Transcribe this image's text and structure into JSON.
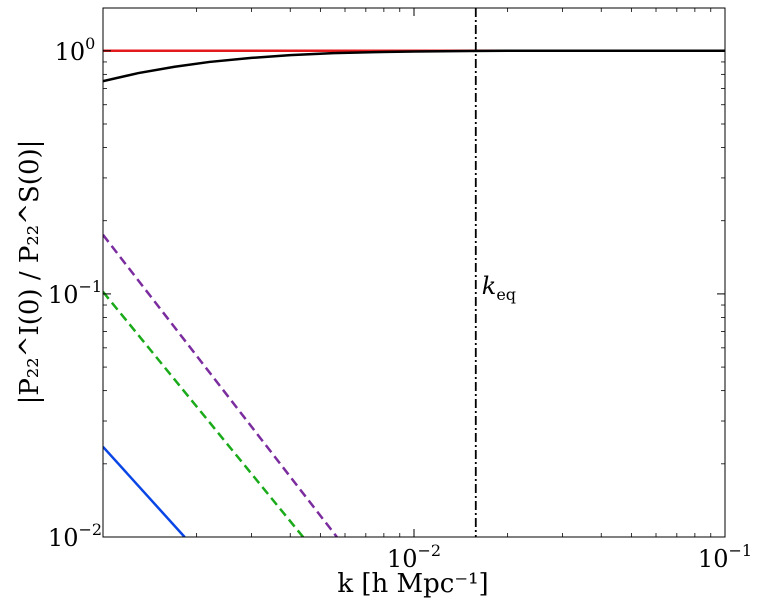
{
  "chart_data": {
    "type": "line",
    "title": "",
    "xlabel": "k [h Mpc⁻¹]",
    "ylabel": "|P₂₂^I(0) / P₂₂^S(0)|",
    "xscale": "log",
    "yscale": "log",
    "xlim": [
      0.001,
      0.1
    ],
    "ylim": [
      0.01,
      1.5
    ],
    "grid": false,
    "x_ticks": [
      {
        "base": "10",
        "exp": "−2",
        "value": 0.01
      },
      {
        "base": "10",
        "exp": "−1",
        "value": 0.1
      }
    ],
    "y_ticks": [
      {
        "base": "10",
        "exp": "0",
        "value": 1
      },
      {
        "base": "10",
        "exp": "−1",
        "value": 0.1
      },
      {
        "base": "10",
        "exp": "−2",
        "value": 0.01
      }
    ],
    "series": [
      {
        "color": "#e41a1c",
        "dash": "solid",
        "x": [
          0.001,
          0.1
        ],
        "y": [
          1.0,
          1.0
        ]
      },
      {
        "color": "#000000",
        "dash": "solid",
        "x": [
          0.001,
          0.0013,
          0.0017,
          0.0022,
          0.003,
          0.004,
          0.0055,
          0.0075,
          0.01,
          0.015,
          0.02,
          0.04,
          0.1
        ],
        "y": [
          0.75,
          0.81,
          0.86,
          0.9,
          0.935,
          0.96,
          0.978,
          0.988,
          0.994,
          0.998,
          1.0,
          1.0,
          1.0
        ]
      },
      {
        "color": "#7b2c9e",
        "dash": "dashed",
        "x": [
          0.001,
          0.00565
        ],
        "y": [
          0.175,
          0.01
        ]
      },
      {
        "color": "#1aaa1a",
        "dash": "dashed",
        "x": [
          0.001,
          0.0044
        ],
        "y": [
          0.102,
          0.01
        ]
      },
      {
        "color": "#0a46e6",
        "dash": "solid",
        "x": [
          0.001,
          0.00183
        ],
        "y": [
          0.0235,
          0.01
        ]
      }
    ],
    "vline": {
      "x": 0.0158,
      "color": "#000000",
      "style": "dashdot",
      "label": "k",
      "label_sub": "eq",
      "label_y": 0.1
    }
  }
}
